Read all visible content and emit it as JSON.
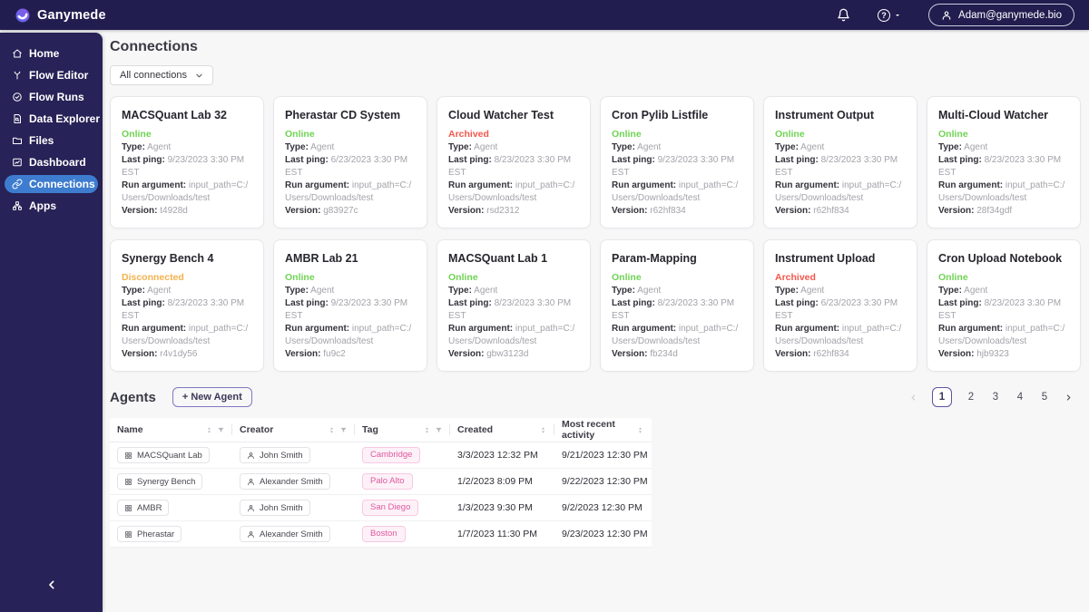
{
  "colors": {
    "online": "#6fd354",
    "archived": "#f4564c",
    "disconnected": "#f3b14d",
    "accent_blue": "#3d7ccf",
    "tag_pink": "#df5a9e"
  },
  "topbar": {
    "brand": "Ganymede",
    "help_glyph": "?",
    "user_email": "Adam@ganymede.bio"
  },
  "sidebar": {
    "active_index": 6,
    "items": [
      {
        "label": "Home",
        "icon": "home-icon"
      },
      {
        "label": "Flow Editor",
        "icon": "flow-branch-icon"
      },
      {
        "label": "Flow Runs",
        "icon": "circle-check-icon"
      },
      {
        "label": "Data Explorer",
        "icon": "document-search-icon"
      },
      {
        "label": "Files",
        "icon": "folder-icon"
      },
      {
        "label": "Dashboard",
        "icon": "chart-frame-icon"
      },
      {
        "label": "Connections",
        "icon": "link-icon"
      },
      {
        "label": "Apps",
        "icon": "sitemap-icon"
      }
    ]
  },
  "connections_section": {
    "title": "Connections",
    "filter_button": "All connections",
    "card_labels": {
      "type": "Type:",
      "last_ping": "Last ping:",
      "run_argument": "Run argument:",
      "version": "Version:"
    },
    "cards": [
      {
        "name": "MACSQuant Lab 32",
        "status": "Online",
        "status_key": "online",
        "type": "Agent",
        "last_ping": "9/23/2023 3:30 PM EST",
        "run_argument": "input_path=C:/Users/Downloads/test",
        "version": "t4928d"
      },
      {
        "name": "Pherastar CD System",
        "status": "Online",
        "status_key": "online",
        "type": "Agent",
        "last_ping": "6/23/2023 3:30 PM EST",
        "run_argument": "input_path=C:/Users/Downloads/test",
        "version": "g83927c"
      },
      {
        "name": "Cloud Watcher Test",
        "status": "Archived",
        "status_key": "archived",
        "type": "Agent",
        "last_ping": "8/23/2023 3:30 PM EST",
        "run_argument": "input_path=C:/Users/Downloads/test",
        "version": "rsd2312"
      },
      {
        "name": "Cron Pylib Listfile",
        "status": "Online",
        "status_key": "online",
        "type": "Agent",
        "last_ping": "9/23/2023 3:30 PM EST",
        "run_argument": "input_path=C:/Users/Downloads/test",
        "version": "r62hf834"
      },
      {
        "name": "Instrument Output",
        "status": "Online",
        "status_key": "online",
        "type": "Agent",
        "last_ping": "8/23/2023 3:30 PM EST",
        "run_argument": "input_path=C:/Users/Downloads/test",
        "version": "r62hf834"
      },
      {
        "name": "Multi-Cloud Watcher",
        "status": "Online",
        "status_key": "online",
        "type": "Agent",
        "last_ping": "8/23/2023 3:30 PM EST",
        "run_argument": "input_path=C:/Users/Downloads/test",
        "version": "28f34gdf"
      },
      {
        "name": "Synergy Bench 4",
        "status": "Disconnected",
        "status_key": "disconnected",
        "type": "Agent",
        "last_ping": "8/23/2023 3:30 PM EST",
        "run_argument": "input_path=C:/Users/Downloads/test",
        "version": "r4v1dy56"
      },
      {
        "name": "AMBR Lab 21",
        "status": "Online",
        "status_key": "online",
        "type": "Agent",
        "last_ping": "9/23/2023 3:30 PM EST",
        "run_argument": "input_path=C:/Users/Downloads/test",
        "version": "fu9c2"
      },
      {
        "name": "MACSQuant Lab 1",
        "status": "Online",
        "status_key": "online",
        "type": "Agent",
        "last_ping": "8/23/2023 3:30 PM EST",
        "run_argument": "input_path=C:/Users/Downloads/test",
        "version": "gbw3123d"
      },
      {
        "name": "Param-Mapping",
        "status": "Online",
        "status_key": "online",
        "type": "Agent",
        "last_ping": "8/23/2023 3:30 PM EST",
        "run_argument": "input_path=C:/Users/Downloads/test",
        "version": "fb234d"
      },
      {
        "name": "Instrument Upload",
        "status": "Archived",
        "status_key": "archived",
        "type": "Agent",
        "last_ping": "6/23/2023 3:30 PM EST",
        "run_argument": "input_path=C:/Users/Downloads/test",
        "version": "r62hf834"
      },
      {
        "name": "Cron Upload Notebook",
        "status": "Online",
        "status_key": "online",
        "type": "Agent",
        "last_ping": "8/23/2023 3:30 PM EST",
        "run_argument": "input_path=C:/Users/Downloads/test",
        "version": "hjb9323"
      }
    ]
  },
  "agents_section": {
    "title": "Agents",
    "new_agent_button": "+ New Agent",
    "pagination": {
      "pages": [
        "1",
        "2",
        "3",
        "4",
        "5"
      ],
      "active": "1"
    },
    "table": {
      "columns": [
        {
          "label": "Name",
          "sort": true,
          "filter": true
        },
        {
          "label": "Creator",
          "sort": true,
          "filter": true
        },
        {
          "label": "Tag",
          "sort": true,
          "filter": true
        },
        {
          "label": "Created",
          "sort": true,
          "filter": false
        },
        {
          "label": "Most recent activity",
          "sort": true,
          "filter": false
        }
      ],
      "rows": [
        {
          "name": "MACSQuant Lab",
          "creator": "John Smith",
          "tag": "Cambridge",
          "created": "3/3/2023 12:32 PM",
          "recent": "9/21/2023 12:30 PM"
        },
        {
          "name": "Synergy Bench",
          "creator": "Alexander Smith",
          "tag": "Palo Alto",
          "created": "1/2/2023 8:09 PM",
          "recent": "9/22/2023 12:30 PM"
        },
        {
          "name": "AMBR",
          "creator": "John Smith",
          "tag": "San Diego",
          "created": "1/3/2023 9:30 PM",
          "recent": "9/2/2023 12:30 PM"
        },
        {
          "name": "Pherastar",
          "creator": "Alexander Smith",
          "tag": "Boston",
          "created": "1/7/2023 11:30 PM",
          "recent": "9/23/2023 12:30 PM"
        }
      ]
    }
  }
}
